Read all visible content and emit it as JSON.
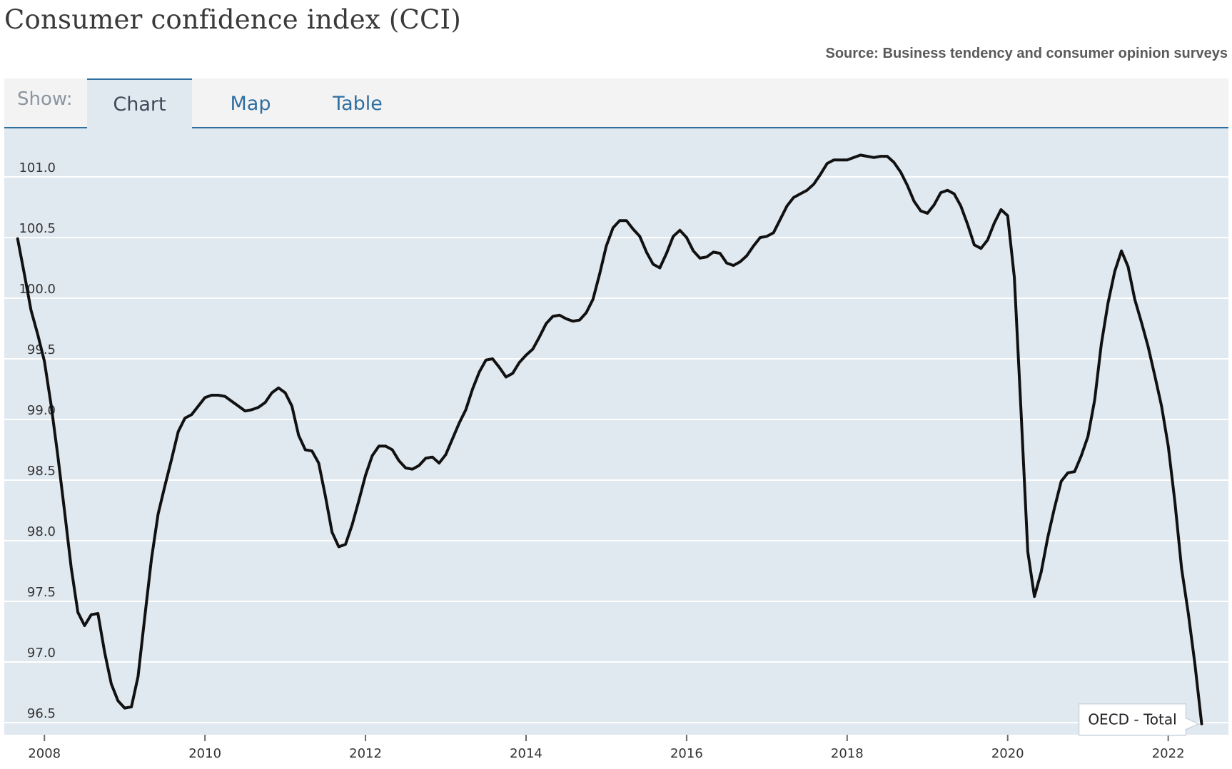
{
  "header": {
    "title": "Consumer confidence index (CCI)",
    "source": "Source: Business tendency and consumer opinion surveys"
  },
  "tabs": {
    "show_label": "Show:",
    "items": [
      {
        "label": "Chart",
        "active": true
      },
      {
        "label": "Map",
        "active": false
      },
      {
        "label": "Table",
        "active": false
      }
    ]
  },
  "colors": {
    "plot_background": "#e1e9f0",
    "line": "#111111",
    "grid": "#ffffff",
    "tab_accent": "#2f6f9f"
  },
  "chart_data": {
    "type": "line",
    "title": "",
    "xlabel": "",
    "ylabel": "",
    "grid": true,
    "ylim": [
      96.4,
      101.4
    ],
    "xlim": [
      "2007-07",
      "2022-10"
    ],
    "y_ticks": [
      96.5,
      97.0,
      97.5,
      98.0,
      98.5,
      99.0,
      99.5,
      100.0,
      100.5,
      101.0
    ],
    "y_tick_labels": [
      "96.5",
      "97.0",
      "97.5",
      "98.0",
      "98.5",
      "99.0",
      "99.5",
      "100.0",
      "100.5",
      "101.0"
    ],
    "x_ticks": [
      "2008-01",
      "2010-01",
      "2012-01",
      "2014-01",
      "2016-01",
      "2018-01",
      "2020-01",
      "2022-01"
    ],
    "x_tick_labels": [
      "2008",
      "2010",
      "2012",
      "2014",
      "2016",
      "2018",
      "2020",
      "2022"
    ],
    "series": [
      {
        "name": "OECD - Total",
        "x": [
          "2007-09",
          "2007-10",
          "2007-11",
          "2007-12",
          "2008-01",
          "2008-02",
          "2008-03",
          "2008-04",
          "2008-05",
          "2008-06",
          "2008-07",
          "2008-08",
          "2008-09",
          "2008-10",
          "2008-11",
          "2008-12",
          "2009-01",
          "2009-02",
          "2009-03",
          "2009-04",
          "2009-05",
          "2009-06",
          "2009-07",
          "2009-08",
          "2009-09",
          "2009-10",
          "2009-11",
          "2009-12",
          "2010-01",
          "2010-02",
          "2010-03",
          "2010-04",
          "2010-05",
          "2010-06",
          "2010-07",
          "2010-08",
          "2010-09",
          "2010-10",
          "2010-11",
          "2010-12",
          "2011-01",
          "2011-02",
          "2011-03",
          "2011-04",
          "2011-05",
          "2011-06",
          "2011-07",
          "2011-08",
          "2011-09",
          "2011-10",
          "2011-11",
          "2011-12",
          "2012-01",
          "2012-02",
          "2012-03",
          "2012-04",
          "2012-05",
          "2012-06",
          "2012-07",
          "2012-08",
          "2012-09",
          "2012-10",
          "2012-11",
          "2012-12",
          "2013-01",
          "2013-02",
          "2013-03",
          "2013-04",
          "2013-05",
          "2013-06",
          "2013-07",
          "2013-08",
          "2013-09",
          "2013-10",
          "2013-11",
          "2013-12",
          "2014-01",
          "2014-02",
          "2014-03",
          "2014-04",
          "2014-05",
          "2014-06",
          "2014-07",
          "2014-08",
          "2014-09",
          "2014-10",
          "2014-11",
          "2014-12",
          "2015-01",
          "2015-02",
          "2015-03",
          "2015-04",
          "2015-05",
          "2015-06",
          "2015-07",
          "2015-08",
          "2015-09",
          "2015-10",
          "2015-11",
          "2015-12",
          "2016-01",
          "2016-02",
          "2016-03",
          "2016-04",
          "2016-05",
          "2016-06",
          "2016-07",
          "2016-08",
          "2016-09",
          "2016-10",
          "2016-11",
          "2016-12",
          "2017-01",
          "2017-02",
          "2017-03",
          "2017-04",
          "2017-05",
          "2017-06",
          "2017-07",
          "2017-08",
          "2017-09",
          "2017-10",
          "2017-11",
          "2017-12",
          "2018-01",
          "2018-02",
          "2018-03",
          "2018-04",
          "2018-05",
          "2018-06",
          "2018-07",
          "2018-08",
          "2018-09",
          "2018-10",
          "2018-11",
          "2018-12",
          "2019-01",
          "2019-02",
          "2019-03",
          "2019-04",
          "2019-05",
          "2019-06",
          "2019-07",
          "2019-08",
          "2019-09",
          "2019-10",
          "2019-11",
          "2019-12",
          "2020-01",
          "2020-02",
          "2020-03",
          "2020-04",
          "2020-05",
          "2020-06",
          "2020-07",
          "2020-08",
          "2020-09",
          "2020-10",
          "2020-11",
          "2020-12",
          "2021-01",
          "2021-02",
          "2021-03",
          "2021-04",
          "2021-05",
          "2021-06",
          "2021-07",
          "2021-08",
          "2021-09",
          "2021-10",
          "2021-11",
          "2021-12",
          "2022-01",
          "2022-02",
          "2022-03",
          "2022-04",
          "2022-05",
          "2022-06"
        ],
        "values": [
          100.49,
          100.2,
          99.9,
          99.7,
          99.48,
          99.12,
          98.7,
          98.25,
          97.78,
          97.41,
          97.3,
          97.39,
          97.4,
          97.08,
          96.82,
          96.68,
          96.62,
          96.63,
          96.88,
          97.37,
          97.85,
          98.22,
          98.45,
          98.67,
          98.9,
          99.01,
          99.04,
          99.11,
          99.18,
          99.2,
          99.2,
          99.19,
          99.15,
          99.11,
          99.07,
          99.08,
          99.1,
          99.14,
          99.22,
          99.26,
          99.22,
          99.11,
          98.87,
          98.75,
          98.74,
          98.64,
          98.37,
          98.07,
          97.95,
          97.97,
          98.13,
          98.33,
          98.54,
          98.7,
          98.78,
          98.78,
          98.75,
          98.66,
          98.6,
          98.59,
          98.62,
          98.68,
          98.69,
          98.64,
          98.71,
          98.84,
          98.97,
          99.08,
          99.25,
          99.39,
          99.49,
          99.5,
          99.43,
          99.35,
          99.38,
          99.47,
          99.53,
          99.58,
          99.68,
          99.79,
          99.85,
          99.86,
          99.83,
          99.81,
          99.82,
          99.88,
          99.99,
          100.2,
          100.43,
          100.58,
          100.64,
          100.64,
          100.57,
          100.51,
          100.38,
          100.28,
          100.25,
          100.37,
          100.51,
          100.56,
          100.5,
          100.39,
          100.33,
          100.34,
          100.38,
          100.37,
          100.29,
          100.27,
          100.3,
          100.35,
          100.43,
          100.5,
          100.51,
          100.54,
          100.65,
          100.76,
          100.83,
          100.86,
          100.89,
          100.94,
          101.02,
          101.11,
          101.14,
          101.14,
          101.14,
          101.16,
          101.18,
          101.17,
          101.16,
          101.17,
          101.17,
          101.12,
          101.04,
          100.93,
          100.8,
          100.72,
          100.7,
          100.77,
          100.87,
          100.89,
          100.86,
          100.76,
          100.61,
          100.44,
          100.41,
          100.48,
          100.62,
          100.73,
          100.68,
          100.17,
          99.06,
          97.91,
          97.54,
          97.74,
          98.03,
          98.27,
          98.49,
          98.56,
          98.57,
          98.7,
          98.86,
          99.16,
          99.62,
          99.96,
          100.22,
          100.39,
          100.26,
          99.99,
          99.8,
          99.6,
          99.36,
          99.11,
          98.78,
          98.32,
          97.77,
          97.4,
          96.98,
          96.49
        ]
      }
    ]
  }
}
